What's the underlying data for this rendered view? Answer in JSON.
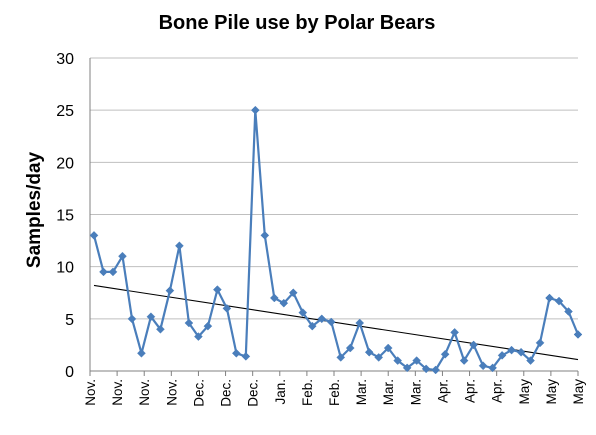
{
  "chart_data": {
    "type": "line",
    "title": "Bone Pile use by Polar Bears",
    "xlabel": "",
    "ylabel": "Samples/day",
    "ylim": [
      0,
      30
    ],
    "yticks": [
      0,
      5,
      10,
      15,
      20,
      25,
      30
    ],
    "grid": true,
    "legend": "none",
    "x_tick_labels": [
      "Nov.",
      "Nov.",
      "Nov.",
      "Nov.",
      "Dec.",
      "Dec.",
      "Dec.",
      "Jan.",
      "Feb.",
      "Feb.",
      "Mar.",
      "Mar.",
      "Mar.",
      "Apr.",
      "Apr.",
      "Apr.",
      "May",
      "May",
      "May"
    ],
    "series": [
      {
        "color": "#4a7ebb",
        "marker": "diamond",
        "values": [
          13,
          9.5,
          9.5,
          11,
          5,
          1.7,
          5.2,
          4,
          7.7,
          12,
          4.6,
          3.3,
          4.3,
          7.8,
          6,
          1.7,
          1.4,
          25,
          13,
          7,
          6.5,
          7.5,
          5.6,
          4.3,
          5,
          4.7,
          1.3,
          2.2,
          4.6,
          1.8,
          1.3,
          2.2,
          1,
          0.3,
          1,
          0.2,
          0.1,
          1.6,
          3.7,
          1,
          2.5,
          0.5,
          0.3,
          1.5,
          2,
          1.8,
          1,
          2.7,
          7,
          6.7,
          5.7,
          3.5
        ]
      }
    ],
    "trendline": {
      "type": "linear",
      "color": "#000000",
      "start": 8.2,
      "end": 1.1
    }
  }
}
